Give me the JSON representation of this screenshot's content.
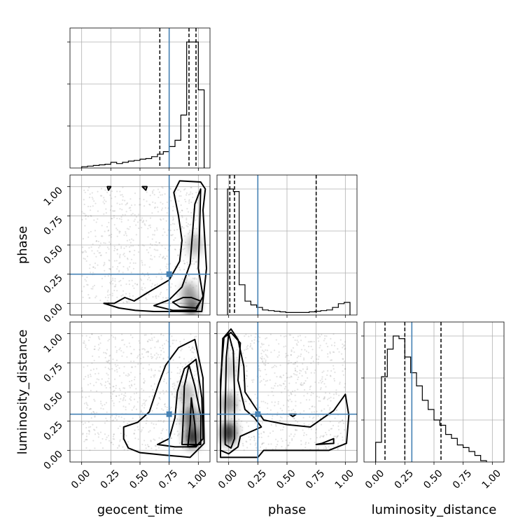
{
  "chart_data": {
    "type": "corner",
    "parameters": [
      "geocent_time",
      "phase",
      "luminosity_distance"
    ],
    "truths": [
      0.75,
      0.25,
      0.31
    ],
    "truth_color": "#4682b4",
    "tick_labels": [
      "0.00",
      "0.25",
      "0.50",
      "0.75",
      "1.00"
    ],
    "axis_range": [
      -0.1,
      1.1
    ],
    "grid": true,
    "histograms": [
      {
        "parameter": "geocent_time",
        "bin_edges": [
          0,
          0.05,
          0.1,
          0.15,
          0.2,
          0.25,
          0.3,
          0.35,
          0.4,
          0.45,
          0.5,
          0.55,
          0.6,
          0.65,
          0.7,
          0.75,
          0.8,
          0.85,
          0.9,
          0.95,
          1.0,
          1.05
        ],
        "values": [
          0.01,
          0.015,
          0.02,
          0.025,
          0.03,
          0.045,
          0.035,
          0.045,
          0.055,
          0.06,
          0.07,
          0.075,
          0.09,
          0.11,
          0.13,
          0.17,
          0.22,
          0.42,
          1.0,
          1.0,
          0.62
        ],
        "quantiles": [
          0.67,
          0.92,
          0.98
        ]
      },
      {
        "parameter": "phase",
        "bin_edges": [
          -0.01,
          0.04,
          0.09,
          0.14,
          0.19,
          0.24,
          0.29,
          0.34,
          0.39,
          0.44,
          0.49,
          0.54,
          0.59,
          0.64,
          0.69,
          0.74,
          0.79,
          0.84,
          0.89,
          0.94,
          0.99,
          1.04
        ],
        "values": [
          1.0,
          0.98,
          0.24,
          0.11,
          0.08,
          0.06,
          0.04,
          0.035,
          0.03,
          0.025,
          0.02,
          0.02,
          0.02,
          0.02,
          0.025,
          0.03,
          0.035,
          0.04,
          0.06,
          0.09,
          0.1
        ],
        "quantiles": [
          0.01,
          0.05,
          0.75
        ]
      },
      {
        "parameter": "luminosity_distance",
        "bin_edges": [
          0.0,
          0.05,
          0.1,
          0.15,
          0.2,
          0.25,
          0.3,
          0.35,
          0.4,
          0.45,
          0.5,
          0.55,
          0.6,
          0.65,
          0.7,
          0.75,
          0.8,
          0.85,
          0.9,
          0.95
        ],
        "values": [
          0.15,
          0.65,
          0.86,
          0.96,
          0.94,
          0.8,
          0.68,
          0.58,
          0.47,
          0.4,
          0.32,
          0.28,
          0.21,
          0.18,
          0.13,
          0.11,
          0.08,
          0.05,
          0.01
        ],
        "quantiles": [
          0.08,
          0.25,
          0.56
        ]
      }
    ],
    "panels_2d": [
      {
        "x": "geocent_time",
        "y": "phase",
        "density_peaks": [
          {
            "x": 0.94,
            "y": 0.0,
            "w": 1.0
          },
          {
            "x": 0.92,
            "y": 0.08,
            "w": 0.5
          },
          {
            "x": 0.97,
            "y": 0.5,
            "w": 0.35
          }
        ],
        "contours": [
          [
            [
              0.25,
              1.0
            ],
            [
              0.23,
              0.97
            ],
            [
              0.22,
              1.0
            ]
          ],
          [
            [
              0.52,
              1.0
            ],
            [
              0.55,
              0.97
            ],
            [
              0.56,
              1.0
            ]
          ],
          [
            [
              0.78,
              0.01
            ],
            [
              0.87,
              0.05
            ],
            [
              0.94,
              0.05
            ],
            [
              1.02,
              0.02
            ],
            [
              0.98,
              -0.04
            ],
            [
              0.84,
              -0.03
            ]
          ],
          [
            [
              0.62,
              -0.02
            ],
            [
              0.75,
              0.03
            ],
            [
              0.86,
              0.14
            ],
            [
              0.93,
              0.34
            ],
            [
              0.95,
              0.6
            ],
            [
              0.97,
              0.85
            ],
            [
              1.02,
              0.98
            ],
            [
              1.01,
              0.6
            ],
            [
              1.0,
              0.3
            ],
            [
              1.04,
              0.06
            ],
            [
              0.98,
              -0.06
            ],
            [
              0.78,
              -0.06
            ]
          ],
          [
            [
              0.19,
              0.0
            ],
            [
              0.32,
              -0.04
            ],
            [
              0.46,
              -0.06
            ],
            [
              0.62,
              -0.07
            ],
            [
              0.82,
              -0.07
            ],
            [
              1.03,
              -0.07
            ],
            [
              1.07,
              0.3
            ],
            [
              1.04,
              0.8
            ],
            [
              1.06,
              0.98
            ],
            [
              1.02,
              1.04
            ],
            [
              0.84,
              1.05
            ],
            [
              0.79,
              0.95
            ],
            [
              0.83,
              0.75
            ],
            [
              0.86,
              0.54
            ],
            [
              0.84,
              0.36
            ],
            [
              0.75,
              0.2
            ],
            [
              0.58,
              0.1
            ],
            [
              0.45,
              0.02
            ],
            [
              0.37,
              0.05
            ],
            [
              0.28,
              0.0
            ]
          ]
        ]
      },
      {
        "x": "geocent_time",
        "y": "luminosity_distance",
        "density_peaks": [
          {
            "x": 0.95,
            "y": 0.12,
            "w": 1.0
          },
          {
            "x": 0.93,
            "y": 0.28,
            "w": 0.7
          },
          {
            "x": 0.9,
            "y": 0.48,
            "w": 0.35
          }
        ],
        "contours": [
          [
            [
              0.91,
              0.03
            ],
            [
              0.93,
              0.22
            ],
            [
              0.94,
              0.45
            ],
            [
              0.97,
              0.22
            ],
            [
              0.98,
              0.04
            ]
          ],
          [
            [
              0.86,
              0.05
            ],
            [
              0.87,
              0.26
            ],
            [
              0.88,
              0.55
            ],
            [
              0.92,
              0.73
            ],
            [
              0.97,
              0.55
            ],
            [
              1.02,
              0.3
            ],
            [
              1.02,
              0.05
            ]
          ],
          [
            [
              0.65,
              0.05
            ],
            [
              0.75,
              0.1
            ],
            [
              0.8,
              0.28
            ],
            [
              0.82,
              0.5
            ],
            [
              0.88,
              0.7
            ],
            [
              0.98,
              0.78
            ],
            [
              1.03,
              0.45
            ],
            [
              1.04,
              0.1
            ],
            [
              0.98,
              0.03
            ],
            [
              0.8,
              0.03
            ]
          ],
          [
            [
              0.36,
              0.1
            ],
            [
              0.36,
              0.2
            ],
            [
              0.48,
              0.24
            ],
            [
              0.58,
              0.33
            ],
            [
              0.66,
              0.57
            ],
            [
              0.72,
              0.73
            ],
            [
              0.83,
              0.88
            ],
            [
              0.97,
              0.95
            ],
            [
              1.04,
              0.62
            ],
            [
              1.05,
              0.06
            ],
            [
              0.93,
              -0.06
            ],
            [
              0.7,
              -0.04
            ],
            [
              0.5,
              -0.02
            ],
            [
              0.4,
              0.02
            ]
          ]
        ]
      },
      {
        "x": "phase",
        "y": "luminosity_distance",
        "density_peaks": [
          {
            "x": 0.0,
            "y": 0.15,
            "w": 1.0
          },
          {
            "x": 0.0,
            "y": 0.4,
            "w": 0.55
          },
          {
            "x": 0.01,
            "y": 0.7,
            "w": 0.25
          }
        ],
        "contours": [
          [
            [
              -0.03,
              0.05
            ],
            [
              -0.03,
              0.35
            ],
            [
              -0.02,
              0.8
            ],
            [
              0.0,
              1.0
            ],
            [
              0.04,
              0.85
            ],
            [
              0.05,
              0.5
            ],
            [
              0.05,
              0.1
            ],
            [
              0.02,
              0.02
            ]
          ],
          [
            [
              -0.07,
              0.0
            ],
            [
              -0.07,
              0.5
            ],
            [
              -0.05,
              0.96
            ],
            [
              0.02,
              1.01
            ],
            [
              0.1,
              0.92
            ],
            [
              0.08,
              0.6
            ],
            [
              0.14,
              0.35
            ],
            [
              0.22,
              0.28
            ],
            [
              0.28,
              0.2
            ],
            [
              0.1,
              0.12
            ],
            [
              0.08,
              0.03
            ],
            [
              0.0,
              -0.03
            ]
          ],
          [
            [
              0.75,
              0.05
            ],
            [
              0.9,
              0.06
            ],
            [
              0.9,
              0.1
            ],
            [
              0.8,
              0.06
            ]
          ],
          [
            [
              0.52,
              0.31
            ],
            [
              0.55,
              0.29
            ],
            [
              0.58,
              0.31
            ]
          ],
          [
            [
              -0.07,
              -0.06
            ],
            [
              -0.07,
              0.6
            ],
            [
              -0.04,
              0.97
            ],
            [
              0.02,
              1.04
            ],
            [
              0.08,
              0.95
            ],
            [
              0.13,
              0.72
            ],
            [
              0.14,
              0.5
            ],
            [
              0.22,
              0.38
            ],
            [
              0.3,
              0.26
            ],
            [
              0.5,
              0.22
            ],
            [
              0.7,
              0.2
            ],
            [
              0.9,
              0.34
            ],
            [
              1.0,
              0.48
            ],
            [
              1.03,
              0.3
            ],
            [
              1.01,
              0.06
            ],
            [
              0.86,
              0.0
            ],
            [
              0.3,
              0.0
            ],
            [
              0.25,
              -0.06
            ]
          ]
        ]
      }
    ]
  }
}
